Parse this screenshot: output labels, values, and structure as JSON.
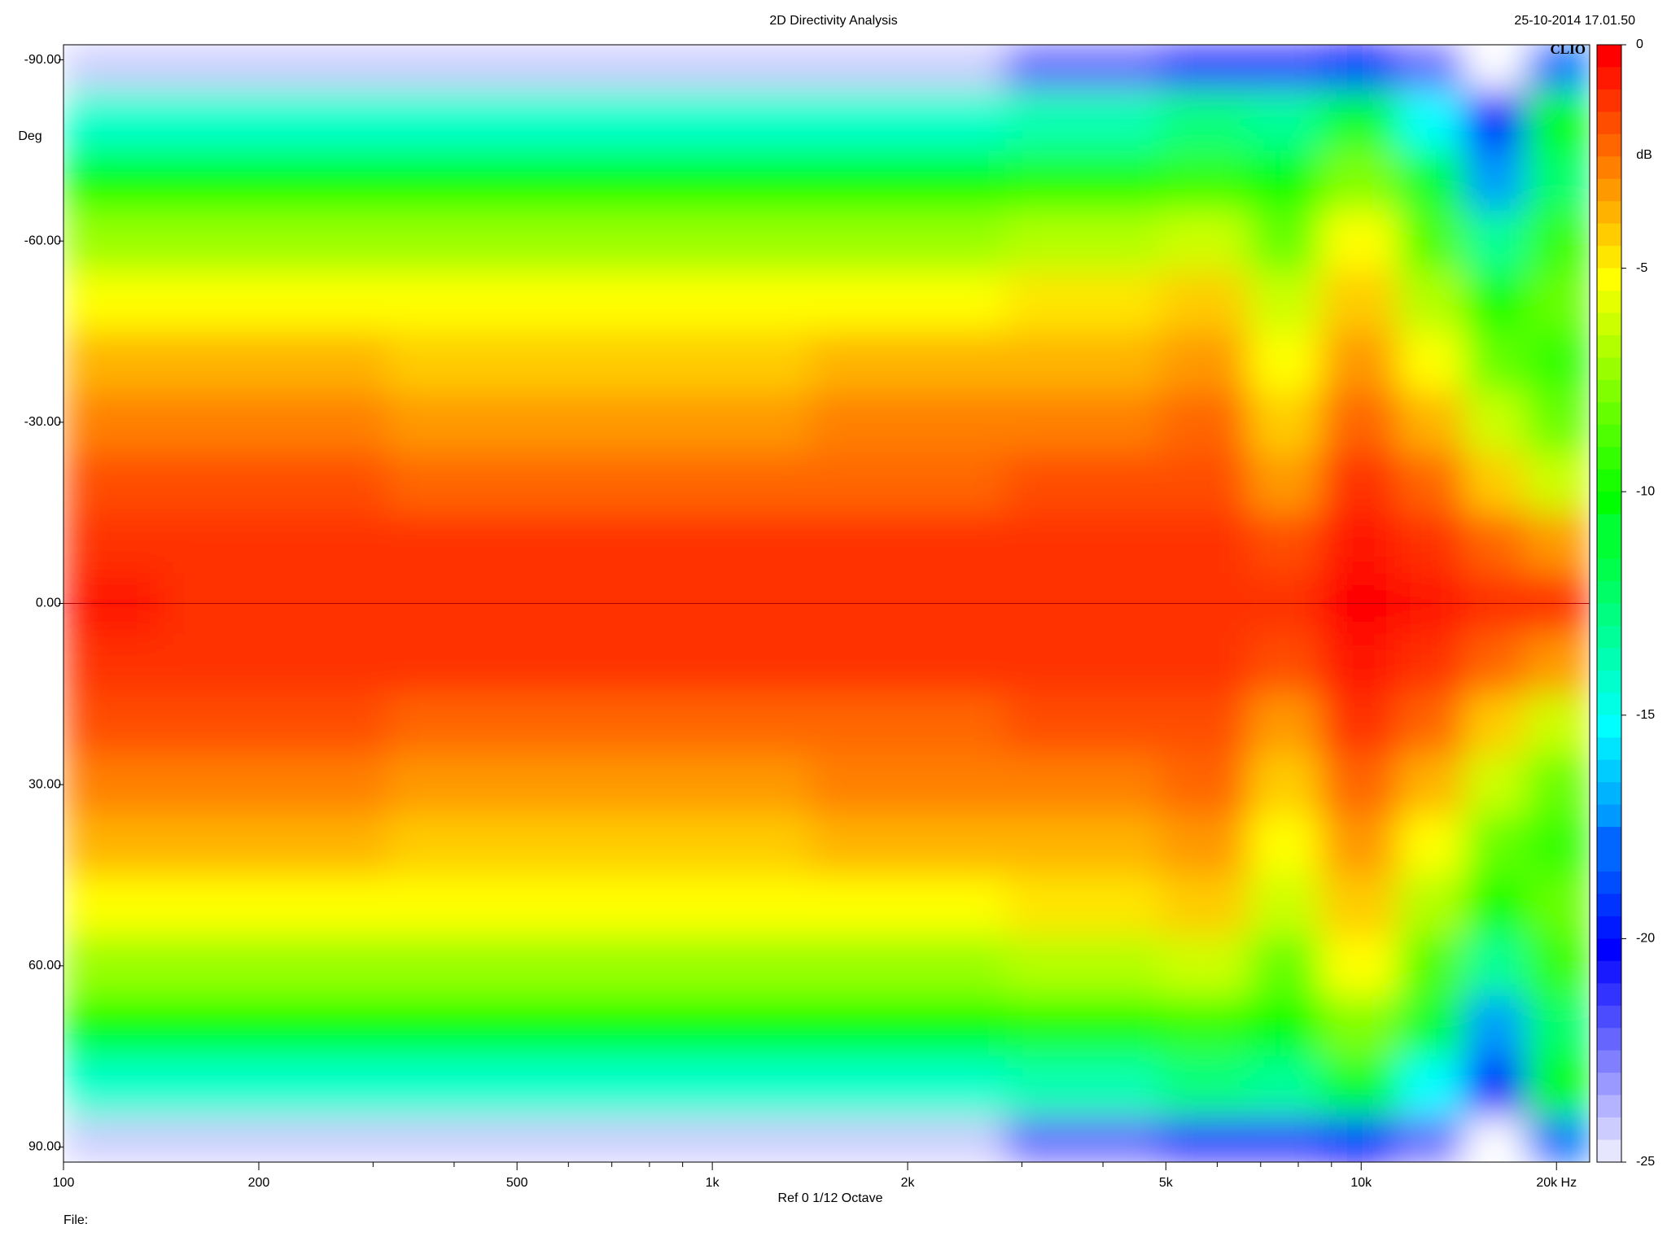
{
  "chart_data": {
    "type": "heatmap",
    "title": "2D Directivity Analysis",
    "timestamp": "25-10-2014 17.01.50",
    "brand": "CLIO",
    "y_label": "Deg",
    "z_label": "dB",
    "footer": "Ref 0   1/12 Octave",
    "file_label": "File:",
    "x_log": true,
    "x": [
      100,
      200,
      500,
      1000,
      2000,
      4000,
      6000,
      7500,
      10000,
      13000,
      16000,
      20000
    ],
    "y": [
      -90,
      -80,
      -70,
      -60,
      -50,
      -40,
      -30,
      -20,
      -10,
      0,
      10,
      20,
      30,
      40,
      50,
      60,
      70,
      80,
      90
    ],
    "z": [
      [
        -24,
        -24,
        -24,
        -24,
        -24,
        -22,
        -21,
        -21,
        -20,
        -22,
        -25,
        -18
      ],
      [
        -14,
        -14,
        -14,
        -14,
        -14,
        -13.5,
        -12.5,
        -13,
        -11,
        -15,
        -20,
        -10
      ],
      [
        -10,
        -10,
        -10,
        -10,
        -10,
        -9.5,
        -9,
        -10,
        -7.5,
        -11,
        -17,
        -12
      ],
      [
        -7,
        -7,
        -7.2,
        -7,
        -7,
        -6.5,
        -6,
        -8,
        -5,
        -8.5,
        -13,
        -9
      ],
      [
        -5,
        -5,
        -5.2,
        -5,
        -5,
        -4.5,
        -4.2,
        -6,
        -4,
        -6.5,
        -10,
        -8
      ],
      [
        -3.5,
        -3.5,
        -3.8,
        -3.8,
        -3.6,
        -3.3,
        -3,
        -5,
        -3,
        -5,
        -8,
        -9
      ],
      [
        -2.5,
        -2.5,
        -2.8,
        -2.8,
        -2.6,
        -2.5,
        -2.2,
        -4,
        -2,
        -3.5,
        -6,
        -8
      ],
      [
        -1.5,
        -1.5,
        -1.8,
        -1.8,
        -1.8,
        -1.7,
        -1.6,
        -3,
        -1,
        -2,
        -4,
        -6
      ],
      [
        -1,
        -1,
        -1.2,
        -1.2,
        -1.2,
        -1.2,
        -1.2,
        -1.5,
        -0.3,
        -1,
        -2,
        -3
      ],
      [
        -0.5,
        -0.8,
        -1,
        -1,
        -1,
        -1,
        -1,
        -1,
        0,
        -0.5,
        -1,
        -1
      ],
      [
        -1,
        -1,
        -1.2,
        -1.2,
        -1.2,
        -1.2,
        -1.2,
        -1.5,
        -0.3,
        -1,
        -2,
        -3
      ],
      [
        -1.5,
        -1.5,
        -1.8,
        -1.8,
        -1.8,
        -1.7,
        -1.6,
        -3,
        -1,
        -2,
        -4,
        -6
      ],
      [
        -2.5,
        -2.5,
        -2.8,
        -2.8,
        -2.6,
        -2.5,
        -2.2,
        -4,
        -2,
        -3.5,
        -6,
        -8
      ],
      [
        -3.5,
        -3.5,
        -3.8,
        -3.8,
        -3.6,
        -3.3,
        -3,
        -5,
        -3,
        -5,
        -8,
        -9
      ],
      [
        -5,
        -5,
        -5.2,
        -5,
        -5,
        -4.5,
        -4.2,
        -6,
        -4,
        -6.5,
        -10,
        -8
      ],
      [
        -7,
        -7,
        -7.2,
        -7,
        -7,
        -6.5,
        -6,
        -8,
        -5,
        -8.5,
        -13,
        -9
      ],
      [
        -10,
        -10,
        -10,
        -10,
        -10,
        -9.5,
        -9,
        -10,
        -7.5,
        -11,
        -17,
        -12
      ],
      [
        -14,
        -14,
        -14,
        -14,
        -14,
        -13.5,
        -12.5,
        -13,
        -11,
        -15,
        -20,
        -10
      ],
      [
        -24,
        -24,
        -24,
        -24,
        -24,
        -22,
        -21,
        -21,
        -20,
        -22,
        -25,
        -18
      ]
    ],
    "xlim": [
      100,
      22500
    ],
    "xticks": [
      100,
      200,
      500,
      {
        "value": 1000,
        "label": "1k"
      },
      {
        "value": 2000,
        "label": "2k"
      },
      {
        "value": 5000,
        "label": "5k"
      },
      {
        "value": 10000,
        "label": "10k"
      },
      {
        "value": 20000,
        "label": "20k Hz"
      }
    ],
    "xminorticks": [
      300,
      400,
      600,
      700,
      800,
      900,
      3000,
      4000,
      6000,
      7000,
      8000,
      9000
    ],
    "ylim": [
      -92.5,
      92.5
    ],
    "yticks": [
      {
        "value": -90,
        "label": "-90.00"
      },
      {
        "value": -60,
        "label": "-60.00"
      },
      {
        "value": -30,
        "label": "-30.00"
      },
      {
        "value": 0,
        "label": "0.00"
      },
      {
        "value": 30,
        "label": "30.00"
      },
      {
        "value": 60,
        "label": "60.00"
      },
      {
        "value": 90,
        "label": "90.00"
      }
    ],
    "zlim": [
      -25,
      0
    ],
    "zticks": [
      0,
      -5,
      -10,
      -15,
      -20,
      -25
    ],
    "colorscale": [
      "#ffffff",
      "#0000ff",
      "#00ffff",
      "#00ff00",
      "#ffff00",
      "#ff0000"
    ]
  }
}
